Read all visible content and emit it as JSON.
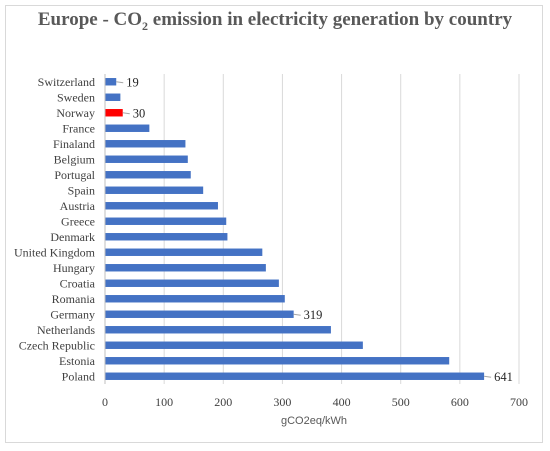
{
  "chart_data": {
    "type": "bar",
    "orientation": "horizontal",
    "title_main": "Europe - CO",
    "title_sub": "2",
    "title_rest": " emission in electricity generation by country",
    "title": "Europe - CO2 emission in electricity generation by country",
    "xlabel": "gCO2eq/kWh",
    "ylabel": "",
    "xlim": [
      0,
      700
    ],
    "xticks": [
      0,
      100,
      200,
      300,
      400,
      500,
      600,
      700
    ],
    "grid": true,
    "legend": "none",
    "bar_color": "#4472c4",
    "highlight_color": "#ff0000",
    "categories": [
      "Switzerland",
      "Sweden",
      "Norway",
      "France",
      "Finaland",
      "Belgium",
      "Portugal",
      "Spain",
      "Austria",
      "Greece",
      "Denmark",
      "United Kingdom",
      "Hungary",
      "Croatia",
      "Romania",
      "Germany",
      "Netherlands",
      "Czech Republic",
      "Estonia",
      "Poland"
    ],
    "values": [
      19,
      26,
      30,
      75,
      136,
      140,
      145,
      166,
      191,
      205,
      207,
      266,
      272,
      294,
      304,
      319,
      382,
      436,
      582,
      641
    ],
    "highlight": "Norway",
    "data_labels": [
      {
        "category": "Switzerland",
        "text": "19"
      },
      {
        "category": "Norway",
        "text": "30"
      },
      {
        "category": "Germany",
        "text": "319"
      },
      {
        "category": "Poland",
        "text": "641"
      }
    ]
  }
}
